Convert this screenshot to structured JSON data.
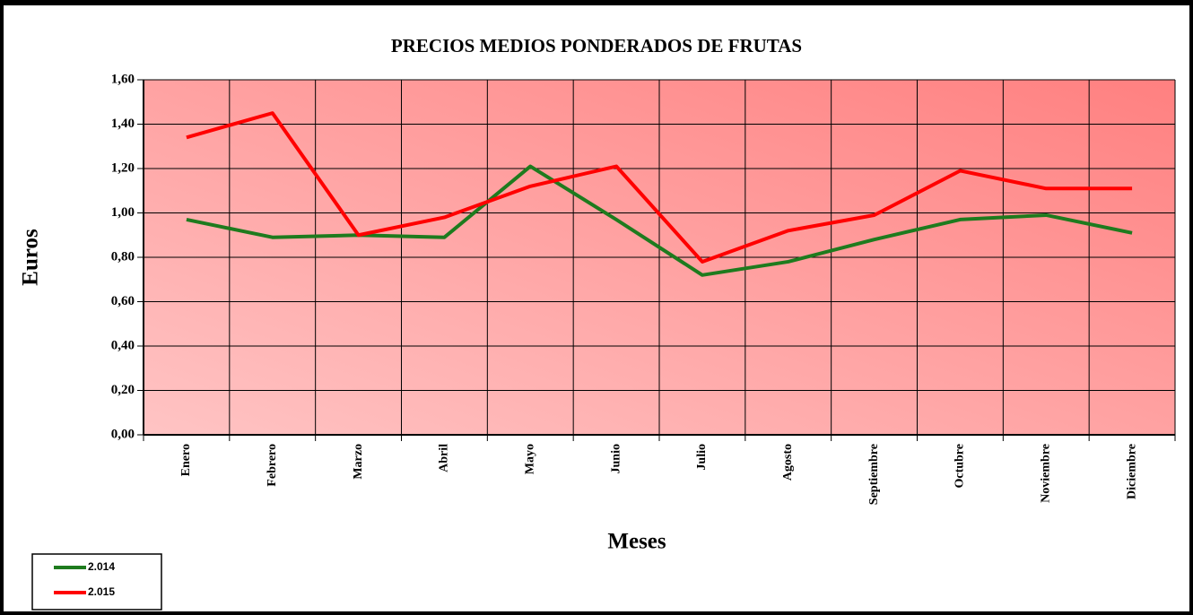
{
  "chart_data": {
    "type": "line",
    "title": "PRECIOS MEDIOS PONDERADOS DE FRUTAS",
    "x_label": "Meses",
    "y_label": "Euros",
    "categories": [
      "Enero",
      "Febrero",
      "Marzo",
      "Abril",
      "Mayo",
      "Junio",
      "Julio",
      "Agosto",
      "Septiembre",
      "Octubre",
      "Noviembre",
      "Diciembre"
    ],
    "series": [
      {
        "name": "2.014",
        "color": "#1e7b1e",
        "values": [
          0.97,
          0.89,
          0.9,
          0.89,
          1.21,
          0.97,
          0.72,
          0.78,
          0.88,
          0.97,
          0.99,
          0.91
        ]
      },
      {
        "name": "2.015",
        "color": "#ff0000",
        "values": [
          1.34,
          1.45,
          0.9,
          0.98,
          1.12,
          1.21,
          0.78,
          0.92,
          0.99,
          1.19,
          1.11,
          1.11
        ]
      }
    ],
    "ylim": [
      0,
      1.6
    ],
    "yticks": [
      {
        "value": 0,
        "label": "0,00"
      },
      {
        "value": 0.2,
        "label": "0,20"
      },
      {
        "value": 0.4,
        "label": "0,40"
      },
      {
        "value": 0.6,
        "label": "0,60"
      },
      {
        "value": 0.8,
        "label": "0,80"
      },
      {
        "value": 1.0,
        "label": "1,00"
      },
      {
        "value": 1.2,
        "label": "1,20"
      },
      {
        "value": 1.4,
        "label": "1,40"
      },
      {
        "value": 1.6,
        "label": "1,60"
      }
    ],
    "grid": true,
    "legend": "bottom-left"
  }
}
